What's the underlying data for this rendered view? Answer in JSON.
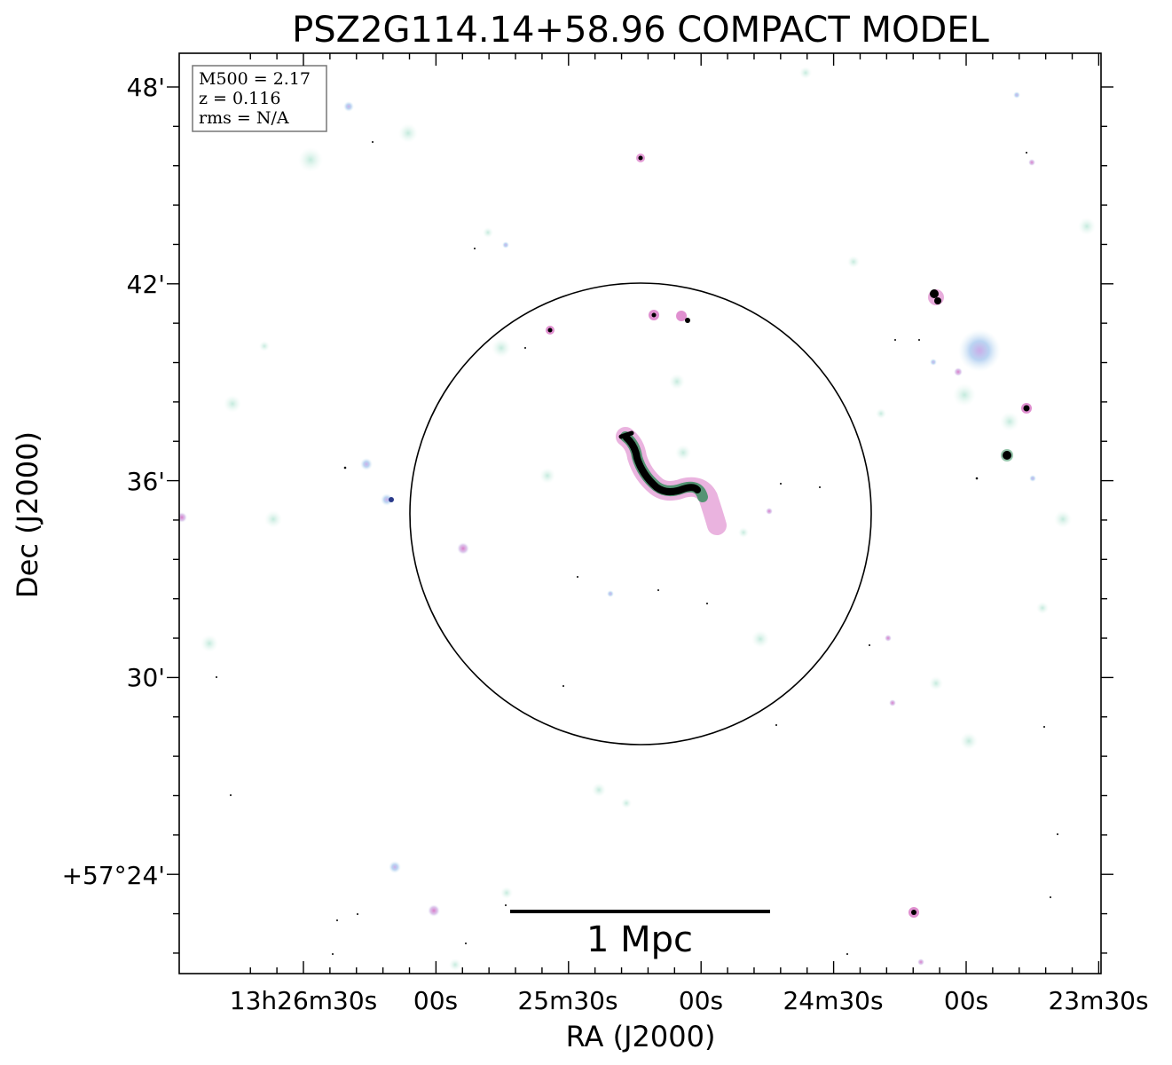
{
  "figure": {
    "title": "PSZ2G114.14+58.96 COMPACT MODEL",
    "xlabel": "RA (J2000)",
    "ylabel": "Dec (J2000)",
    "colors": {
      "background": "#ffffff",
      "frame": "#000000",
      "circle": "#000000",
      "source_core": "#000000",
      "source_green": "#2e8b57",
      "source_pink": "#d87ab8",
      "source_blue": "#9fbfe8",
      "halo": "#cfeee6"
    }
  },
  "ra_ticks": [
    "13h26m30s",
    "00s",
    "25m30s",
    "00s",
    "24m30s",
    "00s",
    "23m30s"
  ],
  "dec_ticks": [
    "48'",
    "42'",
    "36'",
    "30'",
    "+57°24'"
  ],
  "info_box": {
    "line1": "M500 = 2.17",
    "line2": "z = 0.116",
    "line3": "rms = N/A"
  },
  "scalebar": {
    "label": "1 Mpc"
  }
}
